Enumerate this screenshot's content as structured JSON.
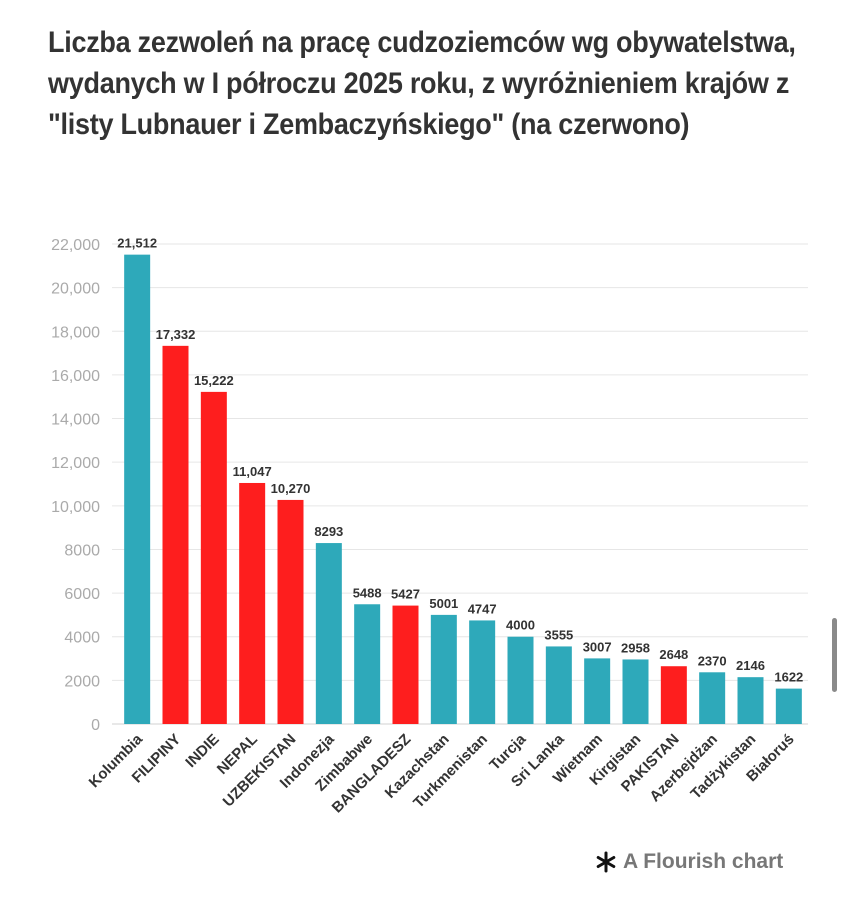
{
  "title": "Liczba zezwoleń na pracę cudzoziemców wg obywatelstwa, wydanych w I półroczu 2025 roku, z wyróżnieniem krajów z \"listy Lubnauer i Zembaczyńskiego\" (na czerwono)",
  "footer": {
    "brand": "A Flourish chart",
    "icon": "flourish-asterisk-icon"
  },
  "colors": {
    "regular": "#2ea9ba",
    "highlighted": "#fe1e1e",
    "grid": "#e6e6e6",
    "axis_text": "#aaaaaa",
    "label_text": "#333333"
  },
  "chart_data": {
    "type": "bar",
    "title": "Liczba zezwoleń na pracę cudzoziemców wg obywatelstwa, wydanych w I półroczu 2025 roku, z wyróżnieniem krajów z \"listy Lubnauer i Zembaczyńskiego\" (na czerwono)",
    "xlabel": "",
    "ylabel": "",
    "ylim": [
      0,
      22000
    ],
    "yticks": [
      0,
      2000,
      4000,
      6000,
      8000,
      10000,
      12000,
      14000,
      16000,
      18000,
      20000,
      22000
    ],
    "ytick_labels": [
      "0",
      "2000",
      "4000",
      "6000",
      "8000",
      "10,000",
      "12,000",
      "14,000",
      "16,000",
      "18,000",
      "20,000",
      "22,000"
    ],
    "grid": true,
    "categories": [
      "Kolumbia",
      "FILIPINY",
      "INDIE",
      "NEPAL",
      "UZBEKISTAN",
      "Indonezja",
      "Zimbabwe",
      "BANGLADESZ",
      "Kazachstan",
      "Turkmenistan",
      "Turcja",
      "Sri Lanka",
      "Wietnam",
      "Kirgistan",
      "PAKISTAN",
      "Azerbejdżan",
      "Tadżykistan",
      "Białoruś"
    ],
    "values": [
      21512,
      17332,
      15222,
      11047,
      10270,
      8293,
      5488,
      5427,
      5001,
      4747,
      4000,
      3555,
      3007,
      2958,
      2648,
      2370,
      2146,
      1622
    ],
    "value_labels": [
      "21,512",
      "17,332",
      "15,222",
      "11,047",
      "10,270",
      "8293",
      "5488",
      "5427",
      "5001",
      "4747",
      "4000",
      "3555",
      "3007",
      "2958",
      "2648",
      "2370",
      "2146",
      "1622"
    ],
    "highlighted": [
      false,
      true,
      true,
      true,
      true,
      false,
      false,
      true,
      false,
      false,
      false,
      false,
      false,
      false,
      true,
      false,
      false,
      false
    ]
  }
}
